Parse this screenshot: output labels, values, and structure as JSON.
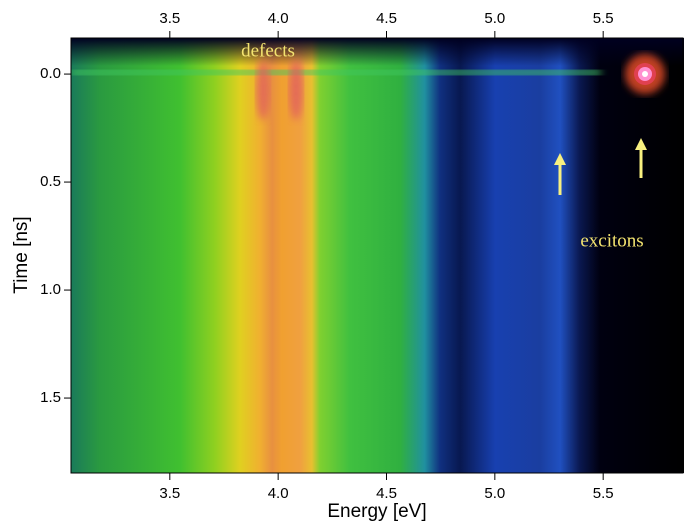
{
  "chart_data": {
    "type": "heatmap",
    "xlabel": "Energy  [eV]",
    "ylabel": "Time  [ns]",
    "xlim": [
      3.044,
      5.873
    ],
    "ylim": [
      -0.167,
      1.847
    ],
    "y_inverted": true,
    "xticks": [
      3.5,
      {
        "value": 4,
        "label": "4.0"
      },
      4.5,
      {
        "value": 5,
        "label": "5.0"
      },
      5.5
    ],
    "yticks": [
      {
        "value": 0,
        "label": "0.0"
      },
      0.5,
      {
        "value": 1,
        "label": "1.0"
      },
      1.5
    ],
    "annotations": [
      "defects",
      "excitons"
    ]
  }
}
